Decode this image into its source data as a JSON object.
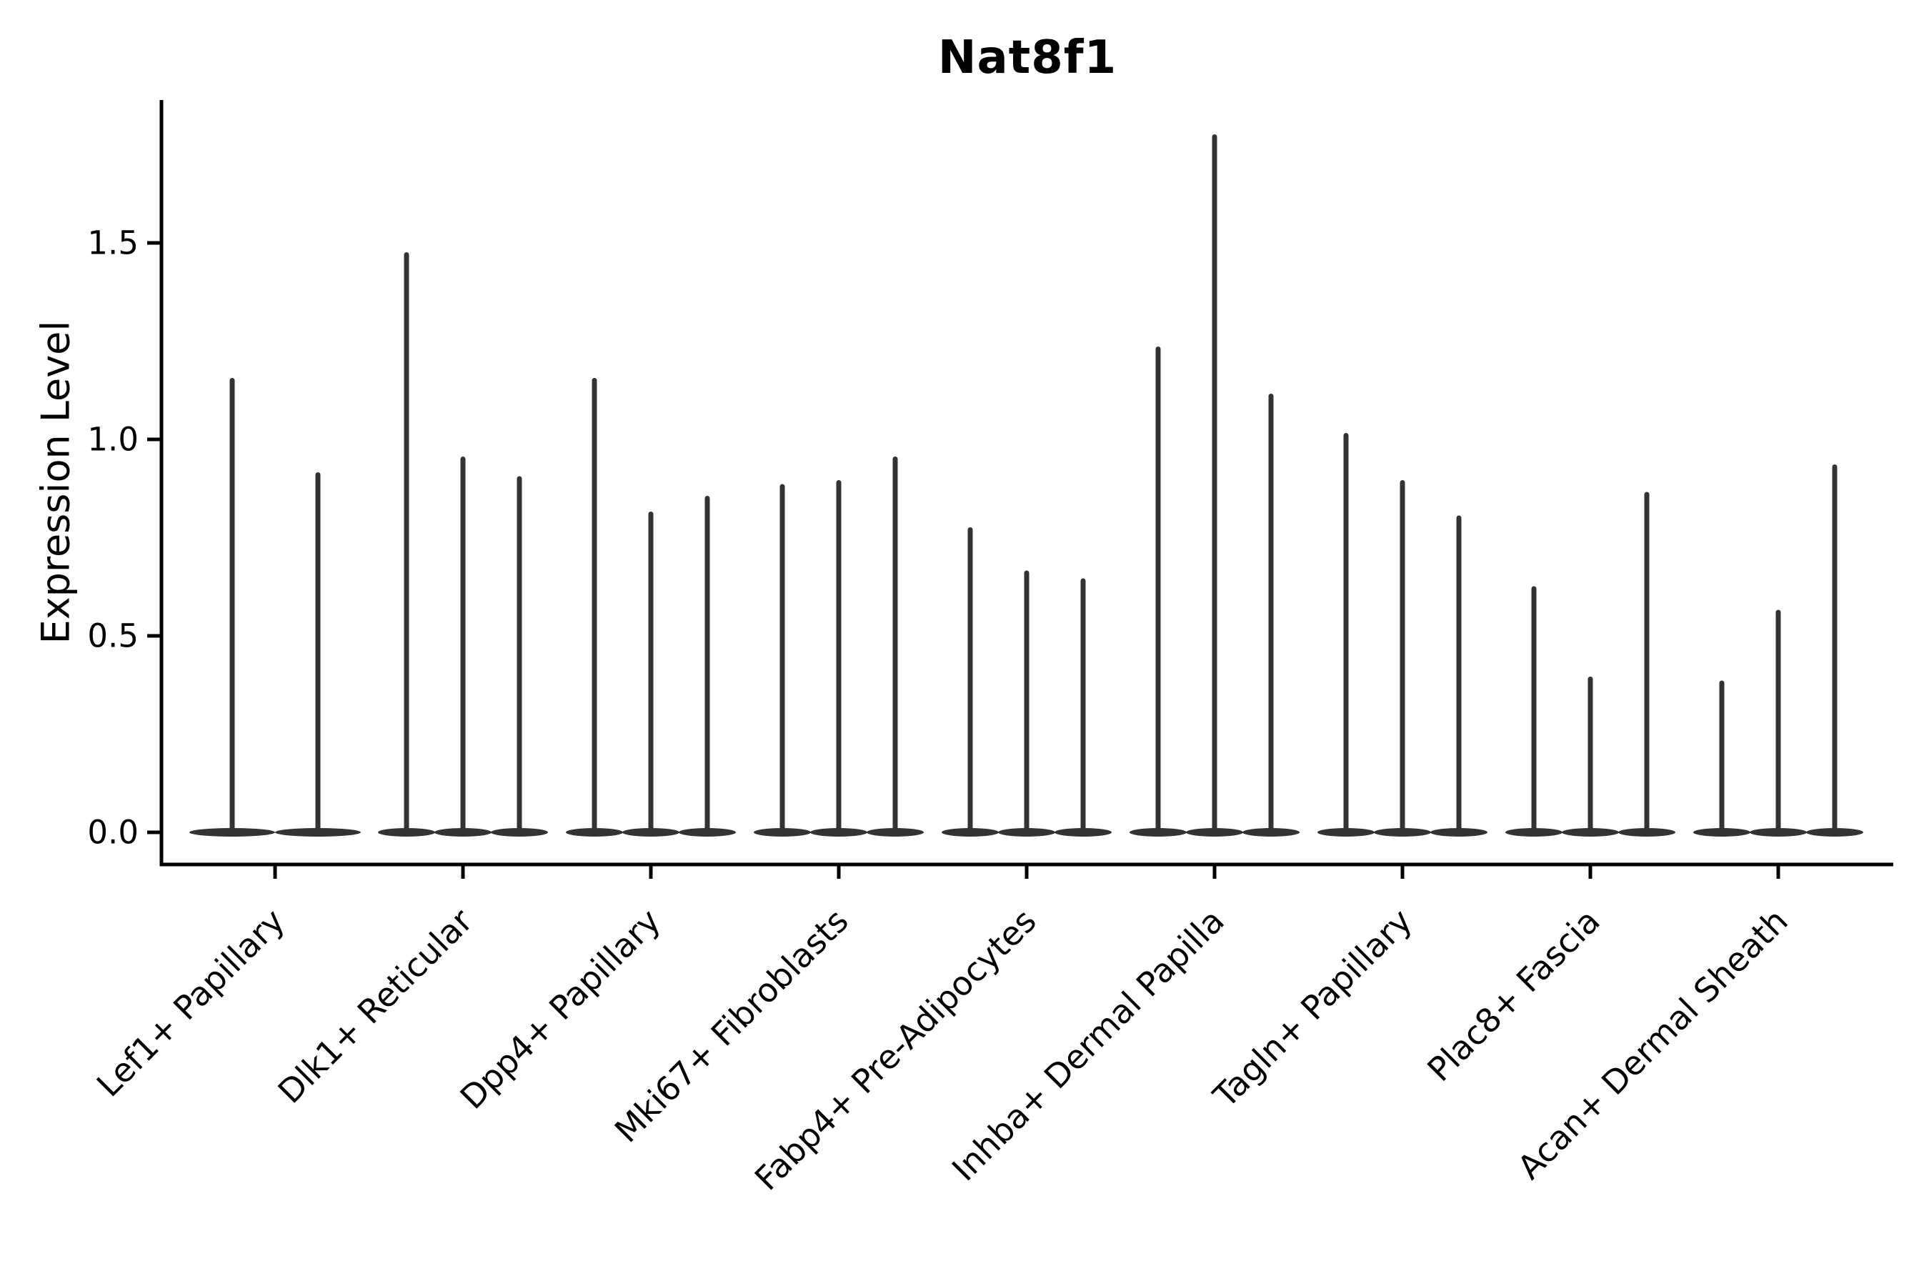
{
  "chart_data": {
    "type": "violin",
    "title": "Nat8f1",
    "ylabel": "Expression Level",
    "xlabel": "",
    "categories": [
      "Lef1+ Papillary",
      "Dlk1+ Reticular",
      "Dpp4+ Papillary",
      "Mki67+ Fibroblasts",
      "Fabp4+ Pre-Adipocytes",
      "Inhba+ Dermal Papilla",
      "Tagln+ Papillary",
      "Plac8+ Fascia",
      "Acan+ Dermal Sheath"
    ],
    "violins": [
      [
        1.15,
        0.91
      ],
      [
        1.47,
        0.95,
        0.9
      ],
      [
        1.15,
        0.81,
        0.85
      ],
      [
        0.88,
        0.89,
        0.95
      ],
      [
        0.77,
        0.66,
        0.64
      ],
      [
        1.23,
        1.77,
        1.11
      ],
      [
        1.01,
        0.89,
        0.8
      ],
      [
        0.62,
        0.39,
        0.86
      ],
      [
        0.38,
        0.56,
        0.93
      ]
    ],
    "violin_note": "each violin is a near-zero-width spike: bulk of cells at 0 expression, max value = spike top",
    "yticks": [
      0.0,
      0.5,
      1.0,
      1.5
    ],
    "ytick_labels": [
      "0.0",
      "0.5",
      "1.0",
      "1.5"
    ],
    "ylim": [
      -0.08,
      1.87
    ],
    "grid": false,
    "legend": "none",
    "violin_color": "#333333",
    "spine_color": "#000000",
    "background": "#ffffff"
  }
}
